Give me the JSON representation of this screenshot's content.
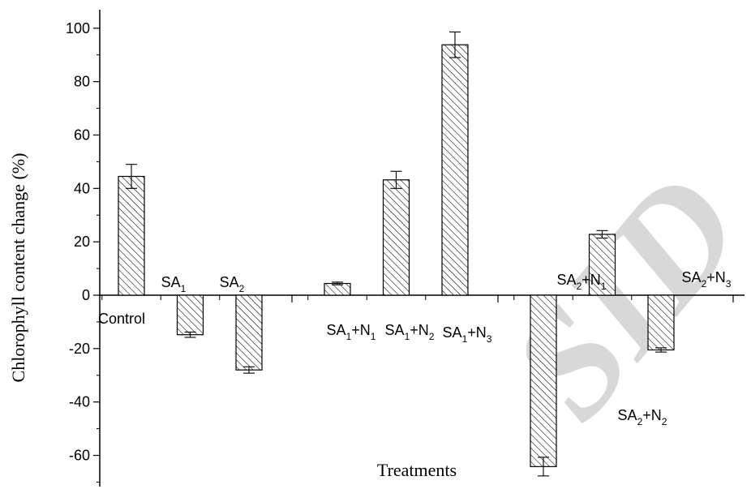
{
  "chart_data": {
    "type": "bar",
    "xlabel": "Treatments",
    "ylabel": "Chlorophyll content change (%)",
    "ylim": [
      -72,
      108
    ],
    "yticks": [
      -60,
      -40,
      -20,
      0,
      20,
      40,
      60,
      80,
      100
    ],
    "grid": false,
    "bar_fill": "diagonal-hatch",
    "categories": [
      {
        "base": "Control",
        "parts": []
      },
      {
        "base": "SA",
        "parts": [
          [
            "SA",
            ""
          ],
          [
            "1",
            "sub"
          ]
        ]
      },
      {
        "base": "SA",
        "parts": [
          [
            "SA",
            ""
          ],
          [
            "2",
            "sub"
          ]
        ]
      },
      {
        "base": "SA",
        "parts": [
          [
            "SA",
            ""
          ],
          [
            "1",
            "sub"
          ],
          [
            "+N",
            ""
          ],
          [
            "1",
            "sub"
          ]
        ]
      },
      {
        "base": "SA",
        "parts": [
          [
            "SA",
            ""
          ],
          [
            "1",
            "sub"
          ],
          [
            "+N",
            ""
          ],
          [
            "2",
            "sub"
          ]
        ]
      },
      {
        "base": "SA",
        "parts": [
          [
            "SA",
            ""
          ],
          [
            "1",
            "sub"
          ],
          [
            "+N",
            ""
          ],
          [
            "3",
            "sub"
          ]
        ]
      },
      {
        "base": "SA",
        "parts": [
          [
            "SA",
            ""
          ],
          [
            "2",
            "sub"
          ],
          [
            "+N",
            ""
          ],
          [
            "1",
            "sub"
          ]
        ]
      },
      {
        "base": "SA",
        "parts": [
          [
            "SA",
            ""
          ],
          [
            "2",
            "sub"
          ],
          [
            "+N",
            ""
          ],
          [
            "2",
            "sub"
          ]
        ]
      },
      {
        "base": "SA",
        "parts": [
          [
            "SA",
            ""
          ],
          [
            "2",
            "sub"
          ],
          [
            "+N",
            ""
          ],
          [
            "3",
            "sub"
          ]
        ]
      }
    ],
    "category_text": [
      "Control",
      "SA1",
      "SA2",
      "SA1+N1",
      "SA1+N2",
      "SA1+N3",
      "SA2+N1",
      "SA2+N2",
      "SA2+N3"
    ],
    "groups": [
      [
        0,
        1,
        2
      ],
      [
        3,
        4,
        5
      ],
      [
        6,
        7,
        8
      ]
    ],
    "values": [
      44.5,
      -14.8,
      -28.0,
      4.4,
      43.2,
      93.8,
      -64.2,
      22.8,
      -20.5
    ],
    "errors": [
      4.5,
      1.0,
      1.2,
      0.5,
      3.2,
      4.8,
      3.5,
      1.4,
      0.8
    ]
  },
  "watermark": "SID"
}
